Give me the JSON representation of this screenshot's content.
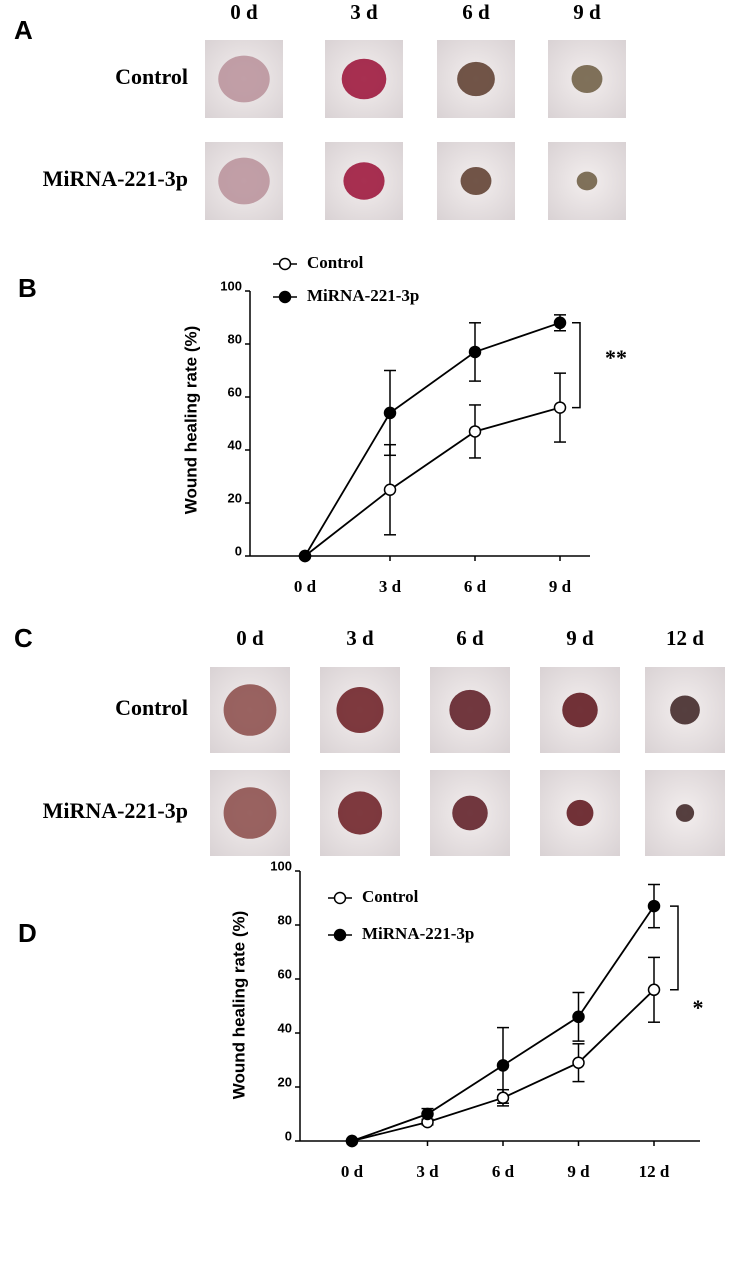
{
  "panels": [
    {
      "label": "A",
      "columns": [
        "0 d",
        "3 d",
        "6 d",
        "9 d"
      ],
      "rows": [
        "Control",
        "MiRNA-221-3p"
      ]
    },
    {
      "label": "C",
      "columns": [
        "0 d",
        "3 d",
        "6 d",
        "9 d",
        "12 d"
      ],
      "rows": [
        "Control",
        "MiRNA-221-3p"
      ]
    }
  ],
  "chart_data": [
    {
      "type": "line",
      "panel": "B",
      "y_label": "Wound healing rate (%)",
      "categories": [
        "0 d",
        "3 d",
        "6 d",
        "9 d"
      ],
      "series": [
        {
          "name": "Control",
          "color": "#ffffff",
          "values": [
            0,
            25,
            47,
            56
          ],
          "errors": [
            0,
            17,
            10,
            13
          ]
        },
        {
          "name": "MiRNA-221-3p",
          "color": "#000000",
          "values": [
            0,
            54,
            77,
            88
          ],
          "errors": [
            0,
            16,
            11,
            3
          ]
        }
      ],
      "ylim": [
        0,
        100
      ],
      "yticks": [
        0,
        20,
        40,
        60,
        80,
        100
      ],
      "annotation": "**"
    },
    {
      "type": "line",
      "panel": "D",
      "y_label": "Wound healing rate (%)",
      "categories": [
        "0 d",
        "3 d",
        "6 d",
        "9 d",
        "12 d"
      ],
      "series": [
        {
          "name": "Control",
          "color": "#ffffff",
          "values": [
            0,
            7,
            16,
            29,
            56
          ],
          "errors": [
            0,
            1,
            3,
            7,
            12
          ]
        },
        {
          "name": "MiRNA-221-3p",
          "color": "#000000",
          "values": [
            0,
            10,
            28,
            46,
            87
          ],
          "errors": [
            0,
            2,
            14,
            9,
            8
          ]
        }
      ],
      "ylim": [
        0,
        100
      ],
      "yticks": [
        0,
        20,
        40,
        60,
        80,
        100
      ],
      "annotation": "*"
    }
  ]
}
